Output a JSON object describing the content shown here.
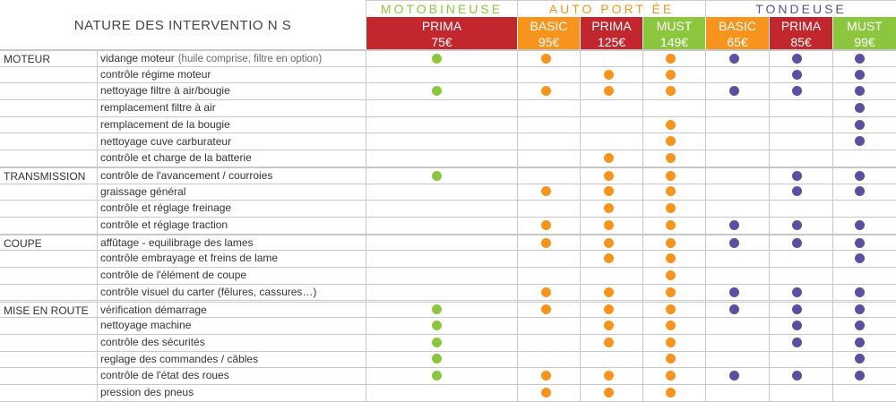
{
  "header": {
    "title": "NATURE DES  INTERVENTIO N S",
    "groups": [
      {
        "label": "MOTOBINEUSE",
        "color": "#8cc63f"
      },
      {
        "label": "AUTO PORT ÉE",
        "color": "#f7941d"
      },
      {
        "label": "TONDEUSE",
        "color": "#5b4fa0"
      }
    ],
    "tiers": [
      {
        "name": "PRIMA",
        "price": "75€",
        "color": "#c1272d"
      },
      {
        "name": "BASIC",
        "price": "95€",
        "color": "#f7941d"
      },
      {
        "name": "PRIMA",
        "price": "125€",
        "color": "#c1272d"
      },
      {
        "name": "MUST",
        "price": "149€",
        "color": "#8cc63f"
      },
      {
        "name": "BASIC",
        "price": "65€",
        "color": "#f7941d"
      },
      {
        "name": "PRIMA",
        "price": "85€",
        "color": "#c1272d"
      },
      {
        "name": "MUST",
        "price": "99€",
        "color": "#8cc63f"
      }
    ]
  },
  "dot_colors": [
    "#8cc63f",
    "#f7941d",
    "#f7941d",
    "#f7941d",
    "#5b4fa0",
    "#5b4fa0",
    "#5b4fa0"
  ],
  "rows": [
    {
      "category": "MOTEUR",
      "label": "vidange moteur",
      "note": "(huile comprise, filtre en option)",
      "marks": [
        1,
        1,
        0,
        1,
        1,
        1,
        1
      ]
    },
    {
      "category": "",
      "label": "contrôle régime moteur",
      "note": "",
      "marks": [
        0,
        0,
        1,
        1,
        0,
        1,
        1
      ]
    },
    {
      "category": "",
      "label": "nettoyage filtre à air/bougie",
      "note": "",
      "marks": [
        1,
        1,
        1,
        1,
        1,
        1,
        1
      ]
    },
    {
      "category": "",
      "label": "remplacement filtre à air",
      "note": "",
      "marks": [
        0,
        0,
        0,
        0,
        0,
        0,
        1
      ]
    },
    {
      "category": "",
      "label": "remplacement de la bougie",
      "note": "",
      "marks": [
        0,
        0,
        0,
        1,
        0,
        0,
        1
      ]
    },
    {
      "category": "",
      "label": "nettoyage cuve carburateur",
      "note": "",
      "marks": [
        0,
        0,
        0,
        1,
        0,
        0,
        1
      ]
    },
    {
      "category": "",
      "label": "contrôle et charge de la batterie",
      "note": "",
      "marks": [
        0,
        0,
        1,
        1,
        0,
        0,
        0
      ]
    },
    {
      "category": "TRANSMISSION",
      "label": "contrôle de l'avancement / courroies",
      "note": "",
      "marks": [
        1,
        0,
        1,
        1,
        0,
        1,
        1
      ]
    },
    {
      "category": "",
      "label": "graissage général",
      "note": "",
      "marks": [
        0,
        1,
        1,
        1,
        0,
        1,
        1
      ]
    },
    {
      "category": "",
      "label": "contrôle et réglage freinage",
      "note": "",
      "marks": [
        0,
        0,
        1,
        1,
        0,
        0,
        0
      ]
    },
    {
      "category": "",
      "label": "contrôle et réglage traction",
      "note": "",
      "marks": [
        0,
        1,
        1,
        1,
        1,
        1,
        1
      ]
    },
    {
      "category": "COUPE",
      "label": "affûtage - equilibrage des lames",
      "note": "",
      "marks": [
        0,
        1,
        1,
        1,
        1,
        1,
        1
      ]
    },
    {
      "category": "",
      "label": "contrôle embrayage et freins de lame",
      "note": "",
      "marks": [
        0,
        0,
        1,
        1,
        0,
        0,
        1
      ]
    },
    {
      "category": "",
      "label": "contrôle de l'élément de coupe",
      "note": "",
      "marks": [
        0,
        0,
        0,
        1,
        0,
        0,
        0
      ]
    },
    {
      "category": "",
      "label": "contrôle visuel du carter (fêlures, cassures…)",
      "note": "",
      "marks": [
        0,
        1,
        1,
        1,
        1,
        1,
        1
      ]
    },
    {
      "category": "MISE EN ROUTE",
      "label": "vérification démarrage",
      "note": "",
      "marks": [
        1,
        1,
        1,
        1,
        1,
        1,
        1
      ]
    },
    {
      "category": "",
      "label": "nettoyage machine",
      "note": "",
      "marks": [
        1,
        0,
        1,
        1,
        0,
        1,
        1
      ]
    },
    {
      "category": "",
      "label": "contrôle des sécurités",
      "note": "",
      "marks": [
        1,
        0,
        1,
        1,
        0,
        1,
        1
      ]
    },
    {
      "category": "",
      "label": "reglage des commandes / câbles",
      "note": "",
      "marks": [
        1,
        0,
        0,
        1,
        0,
        0,
        1
      ]
    },
    {
      "category": "",
      "label": "contrôle de l'état des roues",
      "note": "",
      "marks": [
        1,
        1,
        1,
        1,
        1,
        1,
        1
      ]
    },
    {
      "category": "",
      "label": "pression des pneus",
      "note": "",
      "marks": [
        0,
        1,
        1,
        1,
        0,
        0,
        0
      ]
    }
  ]
}
